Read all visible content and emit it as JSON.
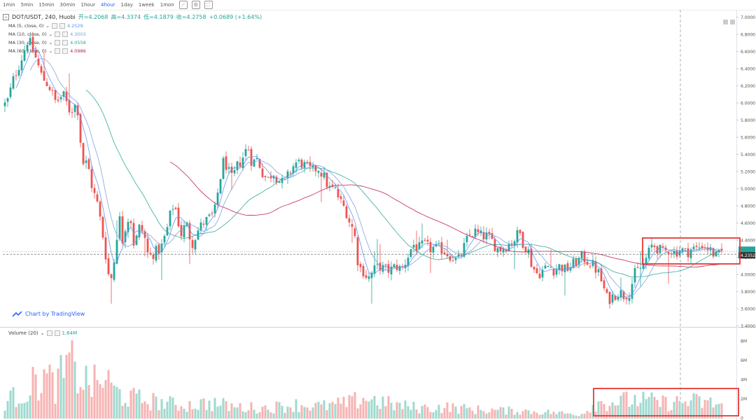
{
  "toolbar": {
    "intervals": [
      "1min",
      "5min",
      "15min",
      "30min",
      "1hour",
      "4hour",
      "1day",
      "1week",
      "1mon"
    ],
    "active_interval": "4hour"
  },
  "symbol_line": {
    "symbol": "DOT/USDT, 240, Huobi",
    "open": "开=4.2068",
    "high": "高=4.3374",
    "low": "低=4.1879",
    "close": "收=4.2758",
    "change": "+0.0689 (+1.64%)"
  },
  "ma_legend": [
    {
      "label": "MA (5, close, 0)",
      "value": "4.2529",
      "color": "#5b8ff9"
    },
    {
      "label": "MA (10, close, 0)",
      "value": "4.3003",
      "color": "#7b9fd6"
    },
    {
      "label": "MA (30, close, 0)",
      "value": "4.0558",
      "color": "#26a69a"
    },
    {
      "label": "MA (60, close, 0)",
      "value": "4.0986",
      "color": "#c2185b"
    }
  ],
  "volume_legend": {
    "label": "Volume (20)",
    "value": "1.64M"
  },
  "brand": "Chart by TradingView",
  "colors": {
    "up": "#26a69a",
    "down": "#ef5350",
    "up_vol": "#9fd9cf",
    "down_vol": "#f6b3b2",
    "annot": "#e53935"
  },
  "chart_data": {
    "type": "candlestick",
    "price_axis": {
      "ticks": [
        "7.0000",
        "6.8000",
        "6.6000",
        "6.4000",
        "6.2000",
        "6.0000",
        "5.8000",
        "5.6000",
        "5.4000",
        "5.2000",
        "5.0000",
        "4.8000",
        "4.6000",
        "4.4000",
        "4.2000",
        "4.0000",
        "3.8000",
        "3.6000",
        "3.4000"
      ],
      "range": [
        3.4,
        7.0
      ],
      "last_price_label": "4.2352",
      "last_price": 4.2352
    },
    "volume_axis": {
      "ticks": [
        "8M",
        "6M",
        "4M",
        "2M",
        "0"
      ],
      "range": [
        0,
        8
      ]
    },
    "price_path": [
      [
        0,
        5.95
      ],
      [
        10,
        6.0
      ],
      [
        20,
        6.3
      ],
      [
        30,
        6.5
      ],
      [
        40,
        6.75
      ],
      [
        50,
        6.55
      ],
      [
        60,
        6.3
      ],
      [
        70,
        6.2
      ],
      [
        80,
        6.0
      ],
      [
        90,
        6.1
      ],
      [
        100,
        5.9
      ],
      [
        110,
        6.0
      ],
      [
        118,
        5.3
      ],
      [
        125,
        5.3
      ],
      [
        132,
        5.0
      ],
      [
        140,
        4.8
      ],
      [
        148,
        4.4
      ],
      [
        155,
        4.0
      ],
      [
        160,
        3.95
      ],
      [
        165,
        4.3
      ],
      [
        170,
        4.7
      ],
      [
        175,
        4.4
      ],
      [
        180,
        4.6
      ],
      [
        186,
        4.7
      ],
      [
        192,
        4.3
      ],
      [
        198,
        4.55
      ],
      [
        205,
        4.5
      ],
      [
        212,
        4.2
      ],
      [
        220,
        4.25
      ],
      [
        230,
        4.3
      ],
      [
        238,
        4.5
      ],
      [
        246,
        4.8
      ],
      [
        252,
        4.75
      ],
      [
        258,
        4.45
      ],
      [
        266,
        4.6
      ],
      [
        274,
        4.35
      ],
      [
        282,
        4.5
      ],
      [
        290,
        4.6
      ],
      [
        298,
        4.65
      ],
      [
        306,
        4.7
      ],
      [
        314,
        5.1
      ],
      [
        320,
        5.35
      ],
      [
        326,
        5.2
      ],
      [
        332,
        5.1
      ],
      [
        338,
        5.25
      ],
      [
        346,
        5.35
      ],
      [
        354,
        5.5
      ],
      [
        360,
        5.3
      ],
      [
        368,
        5.35
      ],
      [
        374,
        5.2
      ],
      [
        382,
        5.1
      ],
      [
        390,
        5.2
      ],
      [
        398,
        5.1
      ],
      [
        406,
        5.05
      ],
      [
        414,
        5.2
      ],
      [
        422,
        5.3
      ],
      [
        430,
        5.3
      ],
      [
        438,
        5.25
      ],
      [
        446,
        5.2
      ],
      [
        454,
        5.25
      ],
      [
        462,
        5.15
      ],
      [
        470,
        5.0
      ],
      [
        478,
        5.0
      ],
      [
        486,
        4.85
      ],
      [
        494,
        4.75
      ],
      [
        500,
        4.6
      ],
      [
        506,
        4.5
      ],
      [
        512,
        4.1
      ],
      [
        518,
        4.05
      ],
      [
        526,
        3.95
      ],
      [
        534,
        4.05
      ],
      [
        542,
        4.1
      ],
      [
        550,
        4.05
      ],
      [
        558,
        4.05
      ],
      [
        566,
        4.1
      ],
      [
        574,
        4.05
      ],
      [
        582,
        4.2
      ],
      [
        590,
        4.35
      ],
      [
        598,
        4.3
      ],
      [
        606,
        4.35
      ],
      [
        614,
        4.3
      ],
      [
        622,
        4.3
      ],
      [
        630,
        4.3
      ],
      [
        638,
        4.25
      ],
      [
        646,
        4.2
      ],
      [
        654,
        4.15
      ],
      [
        662,
        4.3
      ],
      [
        670,
        4.45
      ],
      [
        678,
        4.5
      ],
      [
        686,
        4.45
      ],
      [
        694,
        4.45
      ],
      [
        702,
        4.4
      ],
      [
        710,
        4.3
      ],
      [
        718,
        4.3
      ],
      [
        726,
        4.35
      ],
      [
        734,
        4.4
      ],
      [
        742,
        4.5
      ],
      [
        748,
        4.35
      ],
      [
        754,
        4.3
      ],
      [
        760,
        4.1
      ],
      [
        768,
        4.0
      ],
      [
        776,
        4.05
      ],
      [
        784,
        4.1
      ],
      [
        792,
        4.05
      ],
      [
        800,
        4.1
      ],
      [
        808,
        4.05
      ],
      [
        816,
        4.1
      ],
      [
        824,
        4.15
      ],
      [
        832,
        4.2
      ],
      [
        840,
        4.15
      ],
      [
        848,
        4.1
      ],
      [
        856,
        4.0
      ],
      [
        862,
        3.85
      ],
      [
        868,
        3.7
      ],
      [
        876,
        3.75
      ],
      [
        884,
        3.8
      ],
      [
        892,
        3.75
      ],
      [
        900,
        3.8
      ],
      [
        906,
        4.0
      ],
      [
        912,
        4.05
      ],
      [
        918,
        4.1
      ],
      [
        924,
        4.2
      ],
      [
        932,
        4.35
      ],
      [
        940,
        4.3
      ],
      [
        948,
        4.25
      ],
      [
        956,
        4.3
      ],
      [
        964,
        4.25
      ],
      [
        972,
        4.3
      ],
      [
        980,
        4.25
      ],
      [
        988,
        4.3
      ],
      [
        996,
        4.3
      ],
      [
        1004,
        4.35
      ],
      [
        1012,
        4.3
      ],
      [
        1018,
        4.25
      ],
      [
        1024,
        4.2
      ],
      [
        1030,
        4.25
      ],
      [
        1034,
        4.28
      ]
    ],
    "volume_profile": [
      [
        0,
        1.8
      ],
      [
        20,
        2.5
      ],
      [
        40,
        3.5
      ],
      [
        60,
        5.0
      ],
      [
        80,
        4.0
      ],
      [
        100,
        6.5
      ],
      [
        120,
        4.5
      ],
      [
        140,
        4.0
      ],
      [
        150,
        5.0
      ],
      [
        160,
        3.5
      ],
      [
        180,
        2.5
      ],
      [
        220,
        2.0
      ],
      [
        260,
        1.5
      ],
      [
        300,
        1.8
      ],
      [
        340,
        1.3
      ],
      [
        380,
        1.2
      ],
      [
        420,
        1.6
      ],
      [
        460,
        1.4
      ],
      [
        500,
        1.8
      ],
      [
        520,
        2.5
      ],
      [
        560,
        1.6
      ],
      [
        600,
        1.2
      ],
      [
        640,
        1.3
      ],
      [
        680,
        1.0
      ],
      [
        720,
        0.9
      ],
      [
        760,
        0.8
      ],
      [
        800,
        0.6
      ],
      [
        830,
        0.4
      ],
      [
        850,
        1.8
      ],
      [
        880,
        2.0
      ],
      [
        910,
        2.2
      ],
      [
        950,
        1.8
      ],
      [
        990,
        2.0
      ],
      [
        1034,
        1.6
      ]
    ]
  }
}
